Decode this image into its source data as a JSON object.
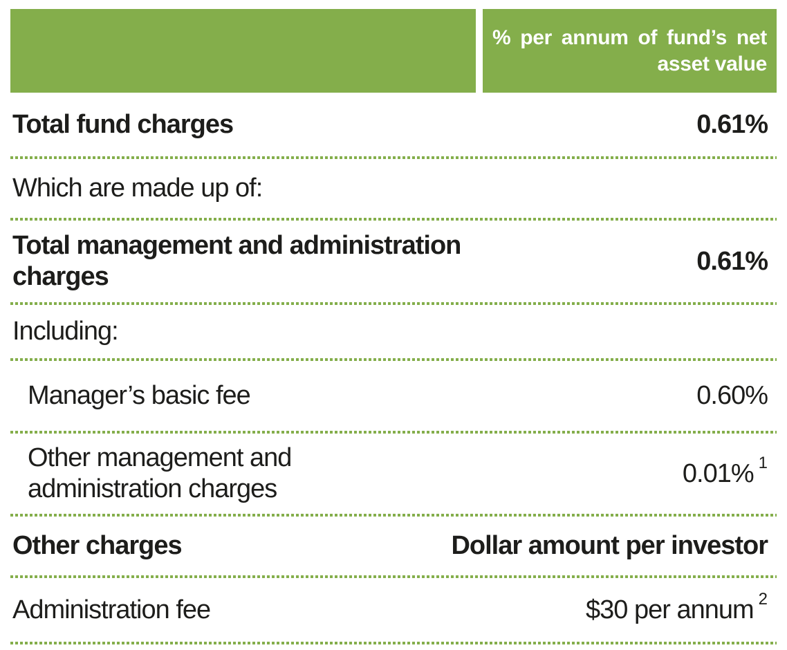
{
  "colors": {
    "accent_green": "#84AE4B",
    "header_text": "#FFFFFF",
    "body_text": "#1D1D1B"
  },
  "table": {
    "header": {
      "percent_column_label": "% per annum of fund’s net asset value"
    },
    "rows": [
      {
        "label": "Total fund charges",
        "value": "0.61%"
      },
      {
        "label": "Which are made up of:",
        "value": ""
      },
      {
        "label": "Total management and administration charges",
        "value": "0.61%"
      },
      {
        "label": "Including:",
        "value": ""
      },
      {
        "label": "Manager’s basic fee",
        "value": "0.60%"
      },
      {
        "label": "Other management and administration charges",
        "value": "0.01%",
        "footnote": "1"
      },
      {
        "label": "Other charges",
        "value": "Dollar amount per investor"
      },
      {
        "label": "Administration fee",
        "value": "$30 per annum",
        "footnote": "2"
      }
    ]
  }
}
